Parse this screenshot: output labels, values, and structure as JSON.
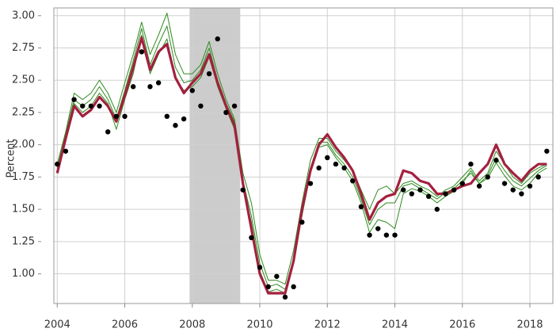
{
  "chart_data": {
    "type": "line",
    "y_label": "Percent",
    "x": [
      2004,
      2004.25,
      2004.5,
      2004.75,
      2005,
      2005.25,
      2005.5,
      2005.75,
      2006,
      2006.25,
      2006.5,
      2006.75,
      2007,
      2007.25,
      2007.5,
      2007.75,
      2008,
      2008.25,
      2008.5,
      2008.75,
      2009,
      2009.25,
      2009.5,
      2009.75,
      2010,
      2010.25,
      2010.5,
      2010.75,
      2011,
      2011.25,
      2011.5,
      2011.75,
      2012,
      2012.25,
      2012.5,
      2012.75,
      2013,
      2013.25,
      2013.5,
      2013.75,
      2014,
      2014.25,
      2014.5,
      2014.75,
      2015,
      2015.25,
      2015.5,
      2015.75,
      2016,
      2016.25,
      2016.5,
      2016.75,
      2017,
      2017.25,
      2017.5,
      2017.75,
      2018,
      2018.25,
      2018.5
    ],
    "series": [
      {
        "style": "dots",
        "color": "#000000",
        "values": [
          1.85,
          1.95,
          2.35,
          2.3,
          2.3,
          2.3,
          2.1,
          2.22,
          2.22,
          2.45,
          2.72,
          2.45,
          2.48,
          2.22,
          2.15,
          2.2,
          2.42,
          2.3,
          2.55,
          2.82,
          2.25,
          2.3,
          1.65,
          1.28,
          1.05,
          0.9,
          0.98,
          0.82,
          0.9,
          1.4,
          1.7,
          1.82,
          1.9,
          1.85,
          1.82,
          1.72,
          1.52,
          1.3,
          1.35,
          1.3,
          1.3,
          1.65,
          1.62,
          1.65,
          1.6,
          1.5,
          1.62,
          1.65,
          1.7,
          1.85,
          1.68,
          1.75,
          1.88,
          1.7,
          1.65,
          1.62,
          1.68,
          1.75,
          1.95
        ]
      },
      {
        "style": "thin",
        "color": "#2e8b1e",
        "values": [
          1.85,
          2.1,
          2.4,
          2.35,
          2.4,
          2.5,
          2.4,
          2.25,
          2.48,
          2.7,
          2.95,
          2.7,
          2.85,
          3.02,
          2.7,
          2.55,
          2.55,
          2.62,
          2.8,
          2.55,
          2.35,
          2.2,
          1.78,
          1.55,
          1.15,
          0.95,
          0.95,
          0.92,
          1.18,
          1.55,
          1.88,
          2.05,
          2.05,
          1.95,
          1.88,
          1.8,
          1.65,
          1.5,
          1.65,
          1.68,
          1.62,
          1.7,
          1.72,
          1.68,
          1.65,
          1.6,
          1.65,
          1.68,
          1.75,
          1.82,
          1.72,
          1.78,
          1.95,
          1.85,
          1.75,
          1.7,
          1.78,
          1.82,
          1.85
        ]
      },
      {
        "style": "thin",
        "color": "#2e8b1e",
        "values": [
          1.82,
          2.08,
          2.35,
          2.3,
          2.35,
          2.45,
          2.35,
          2.2,
          2.42,
          2.65,
          2.9,
          2.62,
          2.78,
          2.92,
          2.6,
          2.48,
          2.5,
          2.58,
          2.75,
          2.5,
          2.32,
          2.18,
          1.72,
          1.45,
          1.08,
          0.9,
          0.92,
          0.88,
          1.12,
          1.5,
          1.82,
          2.02,
          2.02,
          1.92,
          1.85,
          1.75,
          1.58,
          1.38,
          1.5,
          1.55,
          1.55,
          1.68,
          1.7,
          1.66,
          1.62,
          1.58,
          1.63,
          1.66,
          1.72,
          1.78,
          1.7,
          1.76,
          1.9,
          1.8,
          1.72,
          1.68,
          1.74,
          1.8,
          1.84
        ]
      },
      {
        "style": "thin",
        "color": "#2e8b1e",
        "values": [
          1.8,
          2.02,
          2.32,
          2.25,
          2.3,
          2.4,
          2.32,
          2.12,
          2.35,
          2.55,
          2.85,
          2.55,
          2.7,
          2.82,
          2.52,
          2.42,
          2.45,
          2.52,
          2.68,
          2.45,
          2.28,
          2.12,
          1.68,
          1.4,
          1.02,
          0.86,
          0.88,
          0.85,
          1.08,
          1.45,
          1.78,
          1.98,
          2.0,
          1.9,
          1.82,
          1.72,
          1.55,
          1.32,
          1.42,
          1.4,
          1.35,
          1.62,
          1.66,
          1.64,
          1.6,
          1.55,
          1.6,
          1.64,
          1.7,
          1.8,
          1.7,
          1.74,
          1.86,
          1.76,
          1.68,
          1.65,
          1.7,
          1.78,
          1.82
        ]
      },
      {
        "style": "thick",
        "color": "#a3203f",
        "values": [
          1.78,
          2.05,
          2.3,
          2.22,
          2.27,
          2.37,
          2.3,
          2.18,
          2.38,
          2.6,
          2.83,
          2.58,
          2.72,
          2.78,
          2.52,
          2.4,
          2.48,
          2.55,
          2.7,
          2.48,
          2.3,
          2.15,
          1.7,
          1.35,
          1.0,
          0.85,
          0.85,
          0.85,
          1.1,
          1.5,
          1.8,
          2.0,
          2.08,
          1.98,
          1.9,
          1.8,
          1.62,
          1.42,
          1.55,
          1.6,
          1.62,
          1.8,
          1.78,
          1.72,
          1.7,
          1.62,
          1.62,
          1.65,
          1.68,
          1.7,
          1.78,
          1.85,
          2.0,
          1.85,
          1.78,
          1.72,
          1.8,
          1.85,
          1.85
        ]
      }
    ],
    "shaded_region": [
      2007.92,
      2009.42
    ],
    "shade_color": "#cccccc",
    "xlim": [
      2003.9,
      2018.68
    ],
    "ylim": [
      0.77,
      3.06
    ],
    "xticks": [
      2004,
      2006,
      2008,
      2010,
      2012,
      2014,
      2016,
      2018
    ],
    "yticks": [
      {
        "value": 1,
        "label": "1.00"
      },
      {
        "value": 1.25,
        "label": "1.25"
      },
      {
        "value": 1.5,
        "label": "1.50"
      },
      {
        "value": 1.75,
        "label": "1.75"
      },
      {
        "value": 2,
        "label": "2.00"
      },
      {
        "value": 2.25,
        "label": "2.25"
      },
      {
        "value": 2.5,
        "label": "2.50"
      },
      {
        "value": 2.75,
        "label": "2.75"
      },
      {
        "value": 3,
        "label": "3.00"
      }
    ],
    "grid": true
  }
}
